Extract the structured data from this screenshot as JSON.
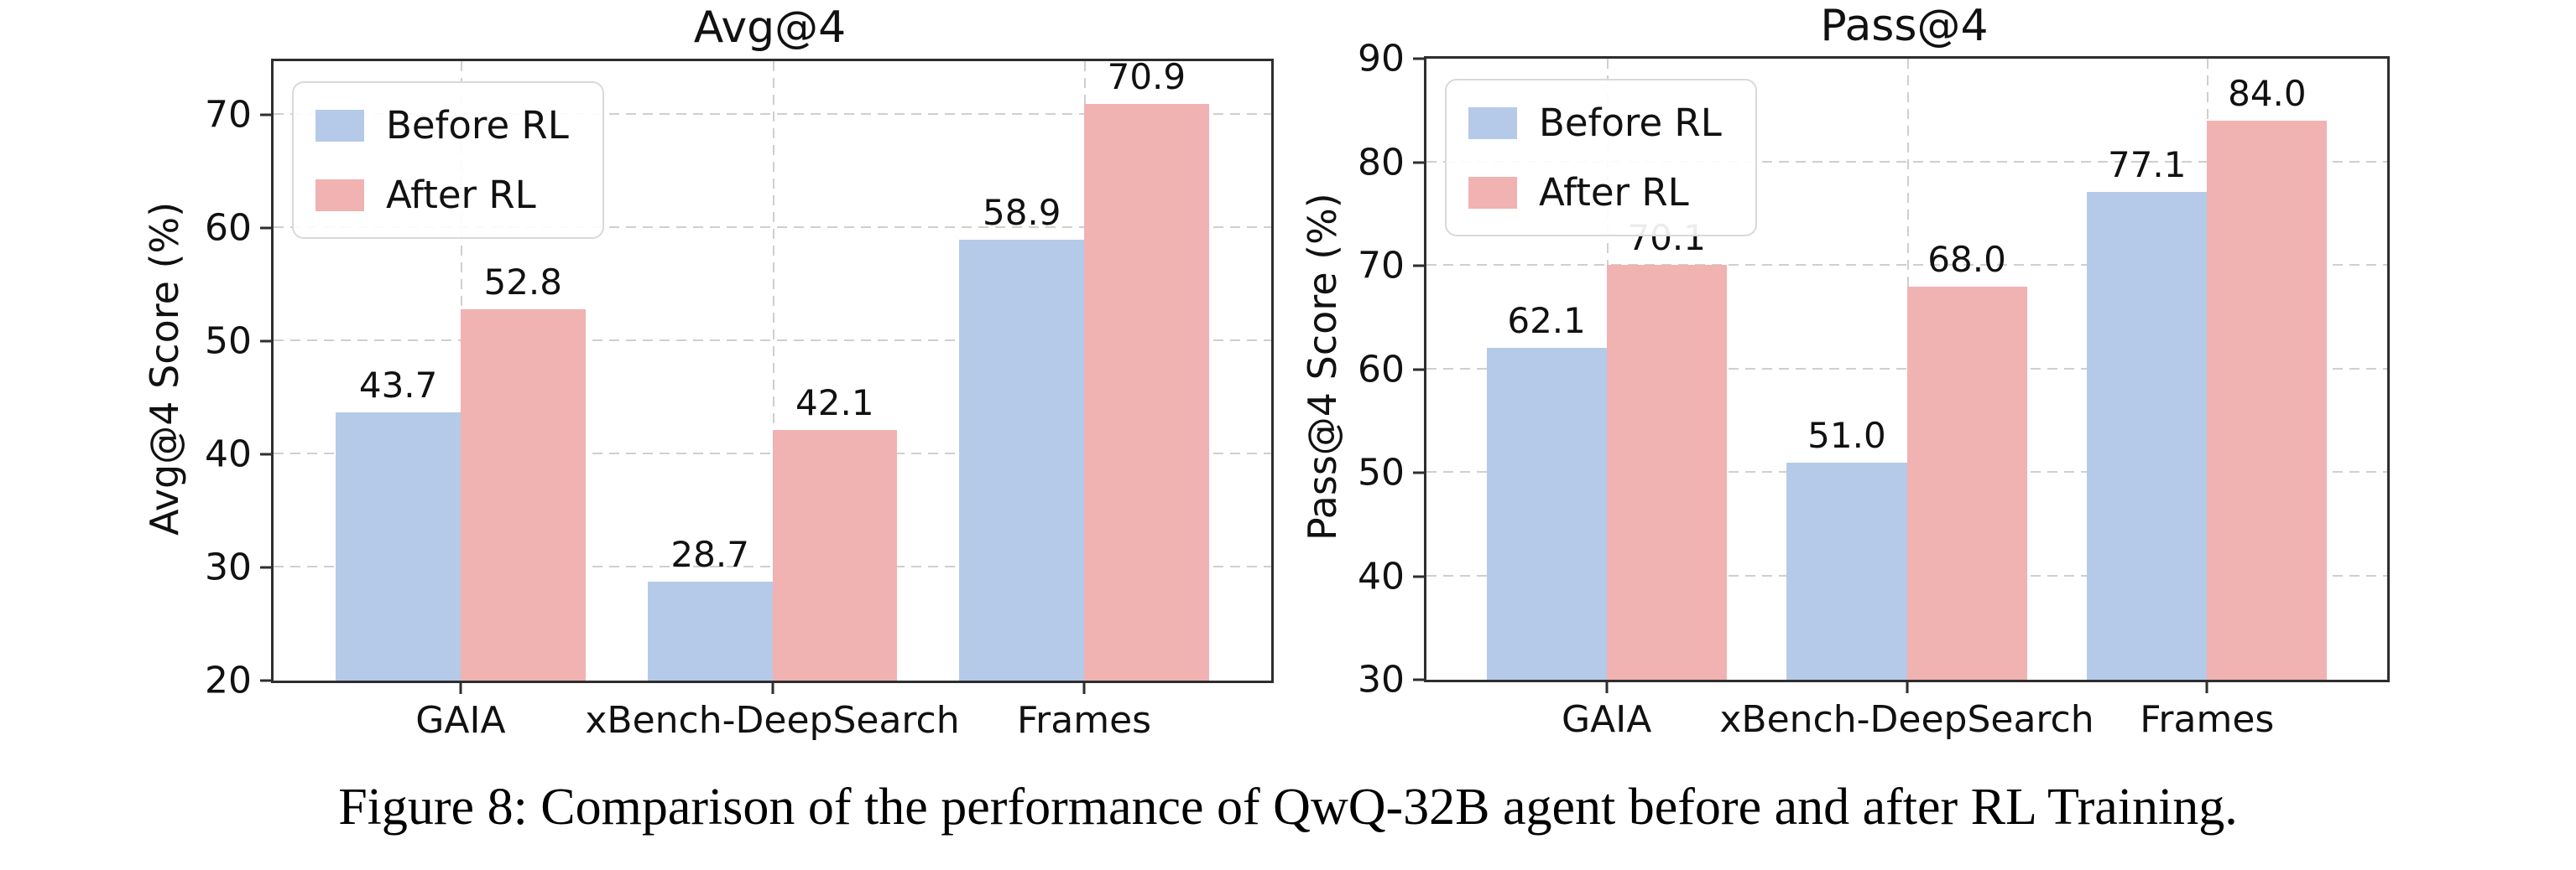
{
  "figure_caption": "Figure 8: Comparison of the performance of QwQ-32B agent before and after RL Training.",
  "colors": {
    "before_rl": "#b5cae8",
    "after_rl": "#f1b2b2",
    "gridline": "#cfcfcf",
    "spine": "#2e2e2e",
    "text": "#111111"
  },
  "chart_data": [
    {
      "type": "bar",
      "title": "Avg@4",
      "ylabel": "Avg@4 Score (%)",
      "categories": [
        "GAIA",
        "xBench-DeepSearch",
        "Frames"
      ],
      "series": [
        {
          "name": "Before RL",
          "color_key": "before_rl",
          "values": [
            43.7,
            28.7,
            58.9
          ]
        },
        {
          "name": "After RL",
          "color_key": "after_rl",
          "values": [
            52.8,
            42.1,
            70.9
          ]
        }
      ],
      "ylim": [
        20,
        74.7
      ],
      "yticks": [
        20,
        30,
        40,
        50,
        60,
        70
      ],
      "grid": true,
      "legend_position": "upper left",
      "value_label_format": "0.1f"
    },
    {
      "type": "bar",
      "title": "Pass@4",
      "ylabel": "Pass@4 Score (%)",
      "categories": [
        "GAIA",
        "xBench-DeepSearch",
        "Frames"
      ],
      "series": [
        {
          "name": "Before RL",
          "color_key": "before_rl",
          "values": [
            62.1,
            51.0,
            77.1
          ]
        },
        {
          "name": "After RL",
          "color_key": "after_rl",
          "values": [
            70.1,
            68.0,
            84.0
          ]
        }
      ],
      "ylim": [
        30,
        90
      ],
      "yticks": [
        30,
        40,
        50,
        60,
        70,
        80,
        90
      ],
      "grid": true,
      "legend_position": "upper left",
      "value_label_format": "0.1f"
    }
  ]
}
